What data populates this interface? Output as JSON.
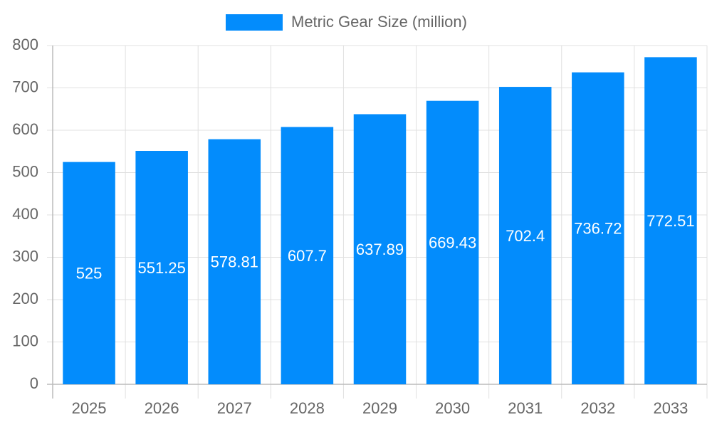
{
  "chart_data": {
    "type": "bar",
    "categories": [
      "2025",
      "2026",
      "2027",
      "2028",
      "2029",
      "2030",
      "2031",
      "2032",
      "2033"
    ],
    "series": [
      {
        "name": "Metric Gear Size (million)",
        "color": "#038cfc",
        "values": [
          525,
          551.25,
          578.81,
          607.7,
          637.89,
          669.43,
          702.4,
          736.72,
          772.51
        ]
      }
    ],
    "ylim": [
      0,
      800
    ],
    "yticks": [
      0,
      100,
      200,
      300,
      400,
      500,
      600,
      700,
      800
    ],
    "grid": true,
    "legend": "top"
  }
}
